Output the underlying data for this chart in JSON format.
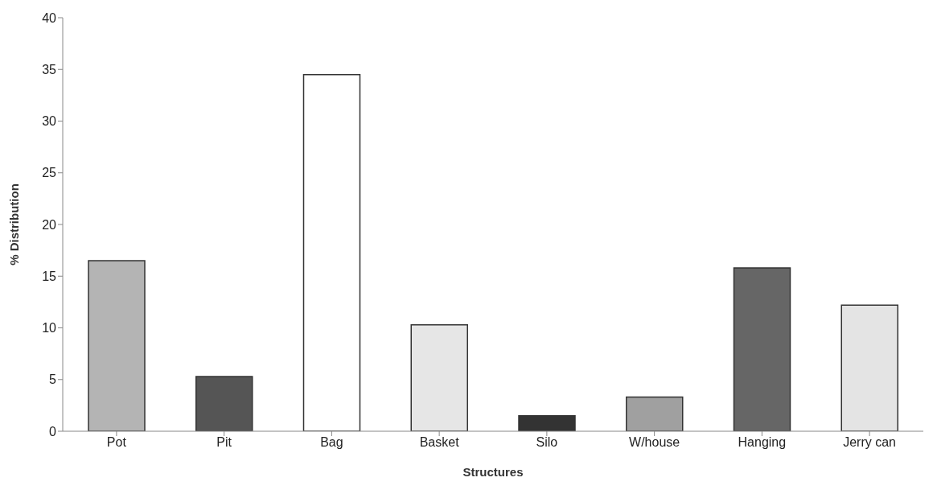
{
  "chart_data": {
    "type": "bar",
    "xlabel": "Structures",
    "ylabel": "% Distribution",
    "categories": [
      "Pot",
      "Pit",
      "Bag",
      "Basket",
      "Silo",
      "W/house",
      "Hanging",
      "Jerry can"
    ],
    "values": [
      16.5,
      5.3,
      34.5,
      10.3,
      1.5,
      3.3,
      15.8,
      12.2
    ],
    "colors": [
      "#b4b4b4",
      "#555555",
      "#ffffff",
      "#e6e6e6",
      "#333333",
      "#a0a0a0",
      "#666666",
      "#e4e4e4"
    ],
    "ylim": [
      0,
      40
    ],
    "yticks": [
      0,
      5,
      10,
      15,
      20,
      25,
      30,
      35,
      40
    ],
    "grid": false,
    "legend": false
  }
}
